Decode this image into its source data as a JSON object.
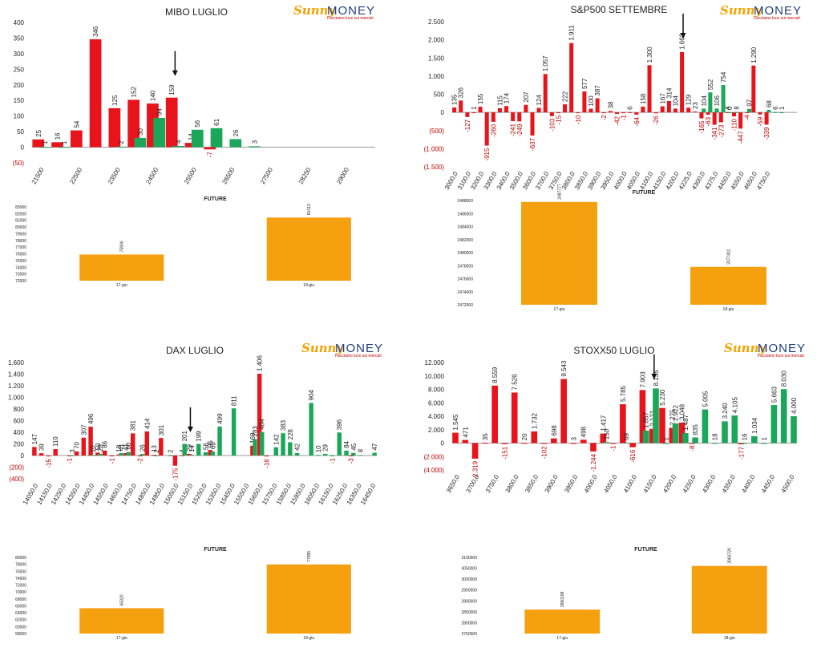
{
  "logo": {
    "brand_a": "Sunny",
    "brand_b": "MONEY",
    "tagline": "Facciamo luce sui mercati"
  },
  "colors": {
    "put": "#e8141b",
    "call": "#1ba75a",
    "future": "#f5a00f",
    "axis": "#999999",
    "neg_text": "#c00000"
  },
  "chart_data": [
    {
      "id": "mibo",
      "type": "bar",
      "title": "MIBO LUGLIO",
      "ylim": [
        -50,
        400
      ],
      "yticks": [
        -50,
        0,
        50,
        100,
        150,
        200,
        250,
        300,
        350,
        400
      ],
      "ytick_labels": [
        "(50)",
        "0",
        "50",
        "100",
        "150",
        "200",
        "250",
        "300",
        "350",
        "400"
      ],
      "categories": [
        "21500",
        "22000",
        "22500",
        "23000",
        "23500",
        "24000",
        "24500",
        "25000",
        "25500",
        "26000",
        "26500",
        "27000",
        "27500",
        "28000",
        "28250",
        "28500",
        "29000",
        "29500"
      ],
      "xtick_labels": [
        "21500",
        "22500",
        "23500",
        "24500",
        "25500",
        "26500",
        "27500",
        "28250",
        "29000"
      ],
      "xtick_every": 2,
      "series": [
        {
          "values": [
            25,
            16,
            54,
            346,
            125,
            152,
            140,
            159,
            14,
            -7,
            null,
            null,
            null,
            null,
            null,
            null,
            null,
            null
          ]
        },
        {
          "values": [
            1,
            1,
            null,
            null,
            2,
            30,
            94,
            4,
            56,
            61,
            26,
            3,
            null,
            null,
            null,
            null,
            null,
            null
          ]
        }
      ],
      "arrow_at": 7,
      "future": {
        "title": "FUTURE",
        "categories": [
          "17-giu",
          "18-giu"
        ],
        "values": [
          75900,
          81413
        ],
        "value_labels": [
          "75900",
          "81413"
        ],
        "ylim": [
          72000,
          83000
        ],
        "yticks": [
          "72000",
          "73000",
          "74000",
          "75000",
          "76000",
          "77000",
          "78000",
          "79000",
          "80000",
          "81000",
          "82000",
          "83000"
        ]
      }
    },
    {
      "id": "spx",
      "type": "bar",
      "title": "S&P500 SETTEMBRE",
      "ylim": [
        -1500,
        2500
      ],
      "yticks": [
        -1500,
        -1000,
        -500,
        0,
        500,
        1000,
        1500,
        2000,
        2500
      ],
      "ytick_labels": [
        "(1.500)",
        "(1.000)",
        "(500)",
        "0",
        "500",
        "1.000",
        "1.500",
        "2.000",
        "2.500"
      ],
      "categories": [
        "3000,0",
        "3050,0",
        "3100,0",
        "3150,0",
        "3200,0",
        "3250,0",
        "3300,0",
        "3350,0",
        "3400,0",
        "3450,0",
        "3500,0",
        "3550,0",
        "3600,0",
        "3650,0",
        "3700,0",
        "3725,0",
        "3750,0",
        "3775,0",
        "3800,0",
        "3825,0",
        "3850,0",
        "3875,0",
        "3900,0",
        "3925,0",
        "3950,0",
        "3975,0",
        "4000,0",
        "4025,0",
        "4050,0",
        "4075,0",
        "4100,0",
        "4125,0",
        "4150,0",
        "4175,0",
        "4200,0",
        "4225,0",
        "4250,0",
        "4275,0",
        "4300,0",
        "4325,0",
        "4350,0",
        "4375,0",
        "4400,0",
        "4425,0",
        "4450,0",
        "4475,0",
        "4500,0",
        "4525,0",
        "4550,0",
        "4600,0",
        "4650,0",
        "4700,0",
        "4750,0"
      ],
      "xtick_labels": [
        "3000,0",
        "3100,0",
        "3200,0",
        "3300,0",
        "3400,0",
        "3500,0",
        "3600,0",
        "3700,0",
        "3750,0",
        "3800,0",
        "3850,0",
        "3900,0",
        "3950,0",
        "4000,0",
        "4050,0",
        "4100,0",
        "4150,0",
        "4200,0",
        "4225,0",
        "4300,0",
        "4375,0",
        "4450,0",
        "4550,0",
        "4650,0",
        "4750,0"
      ],
      "xtick_every": 2,
      "series": [
        {
          "values": [
            135,
            326,
            -127,
            1,
            155,
            -915,
            -260,
            115,
            174,
            -241,
            -249,
            207,
            -637,
            124,
            1057,
            -103,
            -15,
            222,
            1911,
            -10,
            577,
            100,
            387,
            -2,
            38,
            -42,
            -1,
            6,
            -64,
            158,
            1300,
            -26,
            167,
            314,
            104,
            1662,
            129,
            23,
            -165,
            -63,
            -341,
            -273,
            4,
            -110,
            -447,
            -4,
            1290,
            -59,
            -339,
            null,
            null,
            null,
            null
          ]
        },
        {
          "values": [
            null,
            null,
            null,
            null,
            null,
            null,
            null,
            null,
            null,
            null,
            null,
            null,
            null,
            null,
            null,
            null,
            null,
            null,
            null,
            null,
            null,
            null,
            null,
            null,
            null,
            null,
            null,
            null,
            null,
            null,
            null,
            null,
            null,
            null,
            null,
            null,
            null,
            null,
            104,
            552,
            106,
            754,
            0,
            8,
            null,
            97,
            null,
            null,
            68,
            6,
            1,
            null,
            null
          ]
        }
      ],
      "arrow_at": 35,
      "future": {
        "title": "FUTURE",
        "categories": [
          "17-giu",
          "18-giu"
        ],
        "values": [
          2487777,
          2477811
        ],
        "value_labels": [
          "2487777",
          "2477811"
        ],
        "ylim": [
          2472000,
          2488000
        ],
        "yticks": [
          "2472000",
          "2474000",
          "2476000",
          "2478000",
          "2480000",
          "2482000",
          "2484000",
          "2486000",
          "2488000"
        ]
      }
    },
    {
      "id": "dax",
      "type": "bar",
      "title": "DAX LUGLIO",
      "ylim": [
        -400,
        1600
      ],
      "yticks": [
        -400,
        -200,
        0,
        200,
        400,
        600,
        800,
        1000,
        1200,
        1400,
        1600
      ],
      "ytick_labels": [
        "(400)",
        "(200)",
        "0",
        "200",
        "400",
        "600",
        "800",
        "1.000",
        "1.200",
        "1.400",
        "1.600"
      ],
      "categories": [
        "14050,0",
        "14100,0",
        "14150,0",
        "14200,0",
        "14250,0",
        "14300,0",
        "14350,0",
        "14400,0",
        "14450,0",
        "14500,0",
        "14550,0",
        "14600,0",
        "14650,0",
        "14700,0",
        "14750,0",
        "14800,0",
        "14850,0",
        "14900,0",
        "14950,0",
        "15000,0",
        "15050,0",
        "15100,0",
        "15150,0",
        "15200,0",
        "15250,0",
        "15300,0",
        "15350,0",
        "15400,0",
        "15450,0",
        "15500,0",
        "15550,0",
        "15600,0",
        "15650,0",
        "15700,0",
        "15750,0",
        "15800,0",
        "15850,0",
        "15900,0",
        "15950,0",
        "16000,0",
        "16050,0",
        "16100,0",
        "16150,0",
        "16200,0",
        "16250,0",
        "16300,0",
        "16350,0",
        "16400,0",
        "16450,0"
      ],
      "xtick_labels": [
        "14050,0",
        "14150,0",
        "14250,0",
        "14350,0",
        "14450,0",
        "14550,0",
        "14650,0",
        "14750,0",
        "14850,0",
        "14950,0",
        "15050,0",
        "15150,0",
        "15250,0",
        "15350,0",
        "15450,0",
        "15550,0",
        "15650,0",
        "15750,0",
        "15850,0",
        "15950,0",
        "16050,0",
        "16150,0",
        "16250,0",
        "16350,0",
        "16450,0"
      ],
      "xtick_every": 2,
      "series": [
        {
          "values": [
            147,
            39,
            -15,
            110,
            null,
            -1,
            70,
            307,
            496,
            50,
            86,
            -1,
            18,
            41,
            381,
            -2,
            414,
            13,
            301,
            null,
            -175,
            4,
            29,
            null,
            null,
            95,
            null,
            null,
            null,
            null,
            null,
            169,
            1406,
            -16,
            null,
            null,
            null,
            null,
            null,
            null,
            null,
            null,
            null,
            null,
            null,
            -3,
            null,
            null,
            null
          ]
        },
        {
          "values": [
            null,
            null,
            null,
            null,
            null,
            3,
            null,
            null,
            10,
            28,
            null,
            null,
            41,
            60,
            null,
            26,
            null,
            2,
            null,
            2,
            null,
            201,
            14,
            199,
            56,
            68,
            499,
            null,
            811,
            null,
            null,
            283,
            404,
            null,
            142,
            383,
            228,
            42,
            null,
            904,
            10,
            29,
            -1,
            396,
            84,
            45,
            8,
            null,
            47
          ]
        }
      ],
      "arrow_at": 22,
      "future": {
        "title": "FUTURE",
        "categories": [
          "17-giu",
          "18-giu"
        ],
        "values": [
          65320,
          77955
        ],
        "value_labels": [
          "65320",
          "77955"
        ],
        "ylim": [
          58000,
          80000
        ],
        "yticks": [
          "58000",
          "60000",
          "62000",
          "64000",
          "66000",
          "68000",
          "70000",
          "72000",
          "74000",
          "76000",
          "78000",
          "80000"
        ]
      }
    },
    {
      "id": "stoxx",
      "type": "bar",
      "title": "STOXX50 LUGLIO",
      "ylim": [
        -4000,
        12000
      ],
      "yticks": [
        -4000,
        -2000,
        0,
        2000,
        4000,
        6000,
        8000,
        10000,
        12000
      ],
      "ytick_labels": [
        "(4.000)",
        "(2.000)",
        "0",
        "2.000",
        "4.000",
        "6.000",
        "8.000",
        "10.000",
        "12.000"
      ],
      "categories": [
        "3650,0",
        "3675,0",
        "3700,0",
        "3725,0",
        "3750,0",
        "3775,0",
        "3800,0",
        "3825,0",
        "3850,0",
        "3875,0",
        "3900,0",
        "3925,0",
        "3950,0",
        "3975,0",
        "4000,0",
        "4025,0",
        "4050,0",
        "4075,0",
        "4100,0",
        "4125,0",
        "4150,0",
        "4175,0",
        "4200,0",
        "4225,0",
        "4250,0",
        "4275,0",
        "4300,0",
        "4325,0",
        "4350,0",
        "4375,0",
        "4400,0",
        "4425,0",
        "4450,0",
        "4475,0",
        "4500,0"
      ],
      "xtick_labels": [
        "3650,0",
        "3700,0",
        "3750,0",
        "3800,0",
        "3850,0",
        "3900,0",
        "3950,0",
        "4000,0",
        "4050,0",
        "4100,0",
        "4150,0",
        "4200,0",
        "4250,0",
        "4300,0",
        "4350,0",
        "4400,0",
        "4450,0",
        "4500,0"
      ],
      "xtick_every": 2,
      "series": [
        {
          "values": [
            1545,
            471,
            -2319,
            35,
            8559,
            -151,
            7526,
            20,
            1732,
            -102,
            698,
            9543,
            3,
            498,
            -1244,
            1417,
            -1,
            5785,
            -616,
            7903,
            2121,
            5230,
            2275,
            3048,
            -8,
            null,
            null,
            null,
            null,
            -177,
            null,
            null,
            null,
            null,
            null
          ]
        },
        {
          "values": [
            null,
            null,
            null,
            null,
            null,
            null,
            null,
            null,
            null,
            null,
            null,
            null,
            null,
            null,
            null,
            150,
            null,
            69,
            null,
            1857,
            8135,
            1,
            2922,
            1487,
            835,
            5005,
            18,
            3240,
            4105,
            16,
            1034,
            1,
            5663,
            8030,
            4000
          ]
        }
      ],
      "arrow_at": 20,
      "future": {
        "title": "FUTURE",
        "categories": [
          "17-giu",
          "18-giu"
        ],
        "values": [
          2860198,
          3060729
        ],
        "value_labels": [
          "2860198",
          "3060729"
        ],
        "ylim": [
          2750000,
          3100000
        ],
        "yticks": [
          "2750000",
          "2800000",
          "2850000",
          "2900000",
          "2950000",
          "3000000",
          "3050000",
          "3100000"
        ]
      }
    }
  ]
}
